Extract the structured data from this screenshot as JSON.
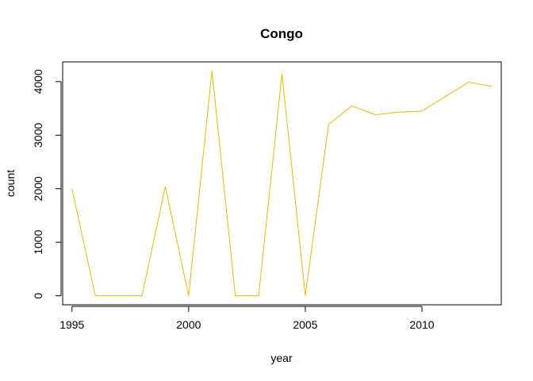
{
  "chart_data": {
    "type": "line",
    "title": "Congo",
    "xlabel": "year",
    "ylabel": "count",
    "xlim": [
      1994.6,
      2013.4
    ],
    "ylim": [
      -168,
      4368
    ],
    "x_ticks": [
      1995,
      2000,
      2005,
      2010
    ],
    "y_ticks": [
      0,
      1000,
      2000,
      3000,
      4000
    ],
    "grid": false,
    "legend": "none",
    "series": [
      {
        "color": "#E6B800",
        "x": [
          1995,
          1996,
          1997,
          1998,
          1999,
          2000,
          2001,
          2002,
          2003,
          2004,
          2005,
          2006,
          2007,
          2008,
          2009,
          2010,
          2011,
          2012,
          2013
        ],
        "y": [
          2000,
          0,
          0,
          0,
          2040,
          0,
          4200,
          0,
          0,
          4150,
          0,
          3200,
          3550,
          3380,
          3430,
          3450,
          3720,
          3990,
          3910
        ]
      }
    ]
  }
}
